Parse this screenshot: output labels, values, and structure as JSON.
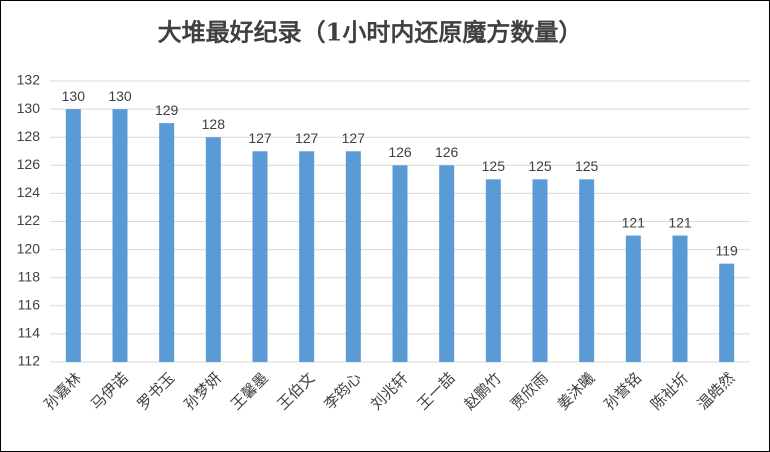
{
  "chart_data": {
    "type": "bar",
    "title": "大堆最好纪录（1小时内还原魔方数量）",
    "categories": [
      "孙嘉林",
      "马伊诺",
      "罗书玉",
      "孙梦妍",
      "王馨墨",
      "王伯文",
      "李筠心",
      "刘兆轩",
      "王一喆",
      "赵鹏竹",
      "贾欣雨",
      "姜沐曦",
      "孙誉铭",
      "陈祉圻",
      "温皓然"
    ],
    "values": [
      130,
      130,
      129,
      128,
      127,
      127,
      127,
      126,
      126,
      125,
      125,
      125,
      121,
      121,
      119
    ],
    "color": "#5b9bd5",
    "ylim": [
      112,
      132
    ],
    "yticks": [
      112,
      114,
      116,
      118,
      120,
      122,
      124,
      126,
      128,
      130,
      132
    ],
    "grid": true
  }
}
